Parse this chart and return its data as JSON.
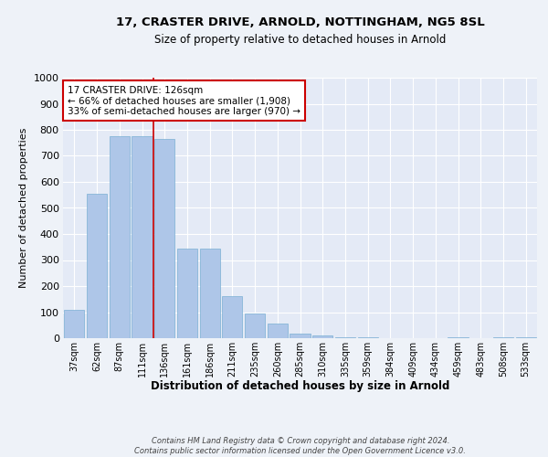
{
  "title1": "17, CRASTER DRIVE, ARNOLD, NOTTINGHAM, NG5 8SL",
  "title2": "Size of property relative to detached houses in Arnold",
  "xlabel": "Distribution of detached houses by size in Arnold",
  "ylabel": "Number of detached properties",
  "categories": [
    "37sqm",
    "62sqm",
    "87sqm",
    "111sqm",
    "136sqm",
    "161sqm",
    "186sqm",
    "211sqm",
    "235sqm",
    "260sqm",
    "285sqm",
    "310sqm",
    "335sqm",
    "359sqm",
    "384sqm",
    "409sqm",
    "434sqm",
    "459sqm",
    "483sqm",
    "508sqm",
    "533sqm"
  ],
  "values": [
    110,
    555,
    775,
    775,
    765,
    345,
    345,
    160,
    95,
    55,
    18,
    10,
    5,
    5,
    0,
    0,
    0,
    5,
    0,
    5,
    5
  ],
  "bar_color": "#aec6e8",
  "bar_edge_color": "#7aafd4",
  "red_line_x": 3.5,
  "annotation_text": "17 CRASTER DRIVE: 126sqm\n← 66% of detached houses are smaller (1,908)\n33% of semi-detached houses are larger (970) →",
  "annotation_box_color": "#ffffff",
  "annotation_box_edge": "#cc0000",
  "footer_text": "Contains HM Land Registry data © Crown copyright and database right 2024.\nContains public sector information licensed under the Open Government Licence v3.0.",
  "bg_color": "#eef2f8",
  "plot_bg_color": "#e4eaf6",
  "grid_color": "#ffffff",
  "ylim": [
    0,
    1000
  ],
  "yticks": [
    0,
    100,
    200,
    300,
    400,
    500,
    600,
    700,
    800,
    900,
    1000
  ]
}
